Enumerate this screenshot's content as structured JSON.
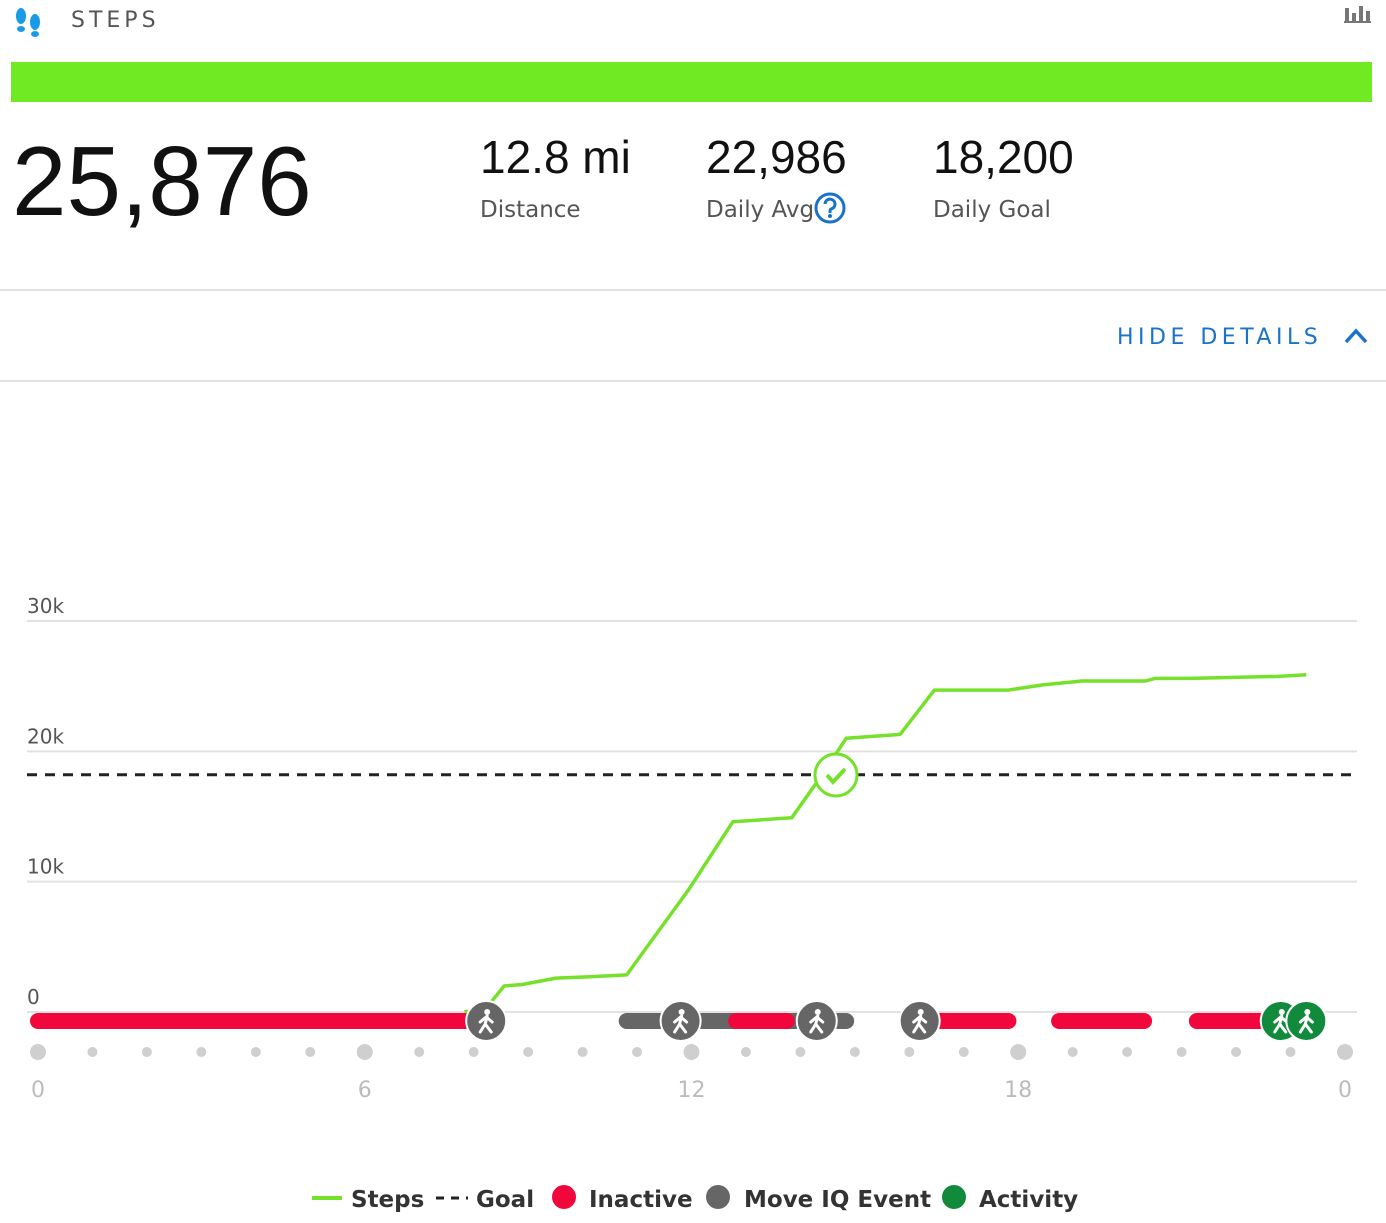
{
  "header": {
    "title": "STEPS",
    "total": "25,876",
    "hide_details": "HIDE DETAILS"
  },
  "stats": [
    {
      "value": "12.8 mi",
      "label": "Distance"
    },
    {
      "value": "22,986",
      "label": "Daily Avg"
    },
    {
      "value": "18,200",
      "label": "Daily Goal"
    }
  ],
  "chart_data": {
    "type": "line",
    "x": [
      7.83,
      8.23,
      8.56,
      8.88,
      9.51,
      10.14,
      10.81,
      11.95,
      12.76,
      13.84,
      14.4,
      14.84,
      15.83,
      16.46,
      17.82,
      18.45,
      19.17,
      20.34,
      20.52,
      21.16,
      22.78,
      23.29
    ],
    "series": [
      {
        "name": "Steps",
        "color": "#76e12a",
        "values": [
          0,
          300,
          2000,
          2100,
          2600,
          2700,
          2850,
          9400,
          14600,
          14900,
          18200,
          21000,
          21300,
          24700,
          24700,
          25100,
          25400,
          25400,
          25600,
          25600,
          25750,
          25876
        ]
      }
    ],
    "goal": {
      "name": "Goal",
      "value": 18200,
      "color": "#222222"
    },
    "timeline": {
      "move_iq": {
        "name": "Move IQ Event",
        "color": "#666666",
        "segments": [
          [
            10.81,
            12.82
          ],
          [
            13.75,
            14.84
          ]
        ],
        "icons": [
          8.23,
          11.8,
          14.3,
          16.19
        ]
      },
      "inactive": {
        "name": "Inactive",
        "color": "#f2073d",
        "segments": [
          [
            0,
            7.9
          ],
          [
            12.82,
            13.75
          ],
          [
            16.55,
            17.82
          ],
          [
            18.75,
            20.31
          ],
          [
            21.28,
            22.6
          ]
        ]
      },
      "activity": {
        "name": "Activity",
        "color": "#118a3c",
        "icons": [
          22.82,
          23.29
        ]
      }
    },
    "xlim": [
      0,
      24
    ],
    "xticks": [
      0,
      6,
      12,
      18,
      {
        "value": 24,
        "label": "0"
      }
    ],
    "ylim": [
      0,
      30000
    ],
    "yticks": [
      0,
      {
        "value": 10000,
        "label": "10k"
      },
      {
        "value": 20000,
        "label": "20k"
      },
      {
        "value": 30000,
        "label": "30k"
      }
    ],
    "grid": true
  }
}
